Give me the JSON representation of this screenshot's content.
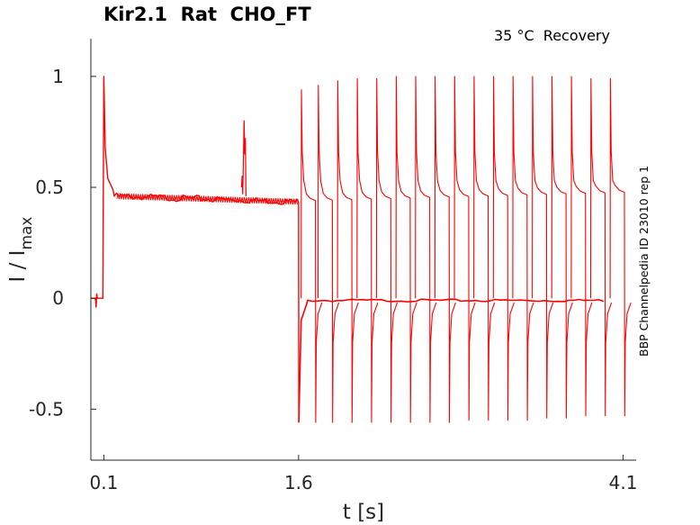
{
  "title": "Kir2.1  Rat  CHO_FT",
  "subtitle": "35 °C  Recovery",
  "side_label": "BBP Channelpedia ID 23010 rep 1",
  "chart_data": {
    "type": "line",
    "title": "Kir2.1  Rat  CHO_FT",
    "xlabel": "t [s]",
    "ylabel_main": "I / I",
    "ylabel_sub": "max",
    "xticks": [
      0.1,
      1.6,
      4.1
    ],
    "xtick_labels": [
      "0.1",
      "1.6",
      "4.1"
    ],
    "yticks": [
      1,
      0.5,
      0,
      -0.5
    ],
    "ytick_labels": [
      "1",
      "0.5",
      "0",
      "-0.5"
    ],
    "xlim": [
      0.0,
      4.2
    ],
    "ylim": [
      -0.73,
      1.17
    ],
    "grid": false,
    "line_color": "#ff0000",
    "initial_step": {
      "t_on": 0.1,
      "peak": 1.0,
      "steady": 0.46,
      "t_off": 1.6
    },
    "artifact": {
      "t": 1.18,
      "peak": 0.8
    },
    "recovery_pulses": [
      {
        "t": 1.62,
        "peak": 0.94,
        "tail": -0.56
      },
      {
        "t": 1.75,
        "peak": 0.96,
        "tail": -0.56
      },
      {
        "t": 1.9,
        "peak": 0.98,
        "tail": -0.56
      },
      {
        "t": 2.05,
        "peak": 0.99,
        "tail": -0.56
      },
      {
        "t": 2.2,
        "peak": 0.99,
        "tail": -0.56
      },
      {
        "t": 2.35,
        "peak": 1.0,
        "tail": -0.56
      },
      {
        "t": 2.5,
        "peak": 1.0,
        "tail": -0.56
      },
      {
        "t": 2.65,
        "peak": 1.0,
        "tail": -0.56
      },
      {
        "t": 2.8,
        "peak": 1.0,
        "tail": -0.55
      },
      {
        "t": 2.95,
        "peak": 1.0,
        "tail": -0.55
      },
      {
        "t": 3.1,
        "peak": 1.0,
        "tail": -0.55
      },
      {
        "t": 3.25,
        "peak": 1.0,
        "tail": -0.55
      },
      {
        "t": 3.4,
        "peak": 1.0,
        "tail": -0.54
      },
      {
        "t": 3.55,
        "peak": 1.0,
        "tail": -0.54
      },
      {
        "t": 3.7,
        "peak": 1.0,
        "tail": -0.53
      },
      {
        "t": 3.85,
        "peak": 0.99,
        "tail": -0.53
      },
      {
        "t": 4.0,
        "peak": 0.99,
        "tail": -0.53
      }
    ]
  }
}
